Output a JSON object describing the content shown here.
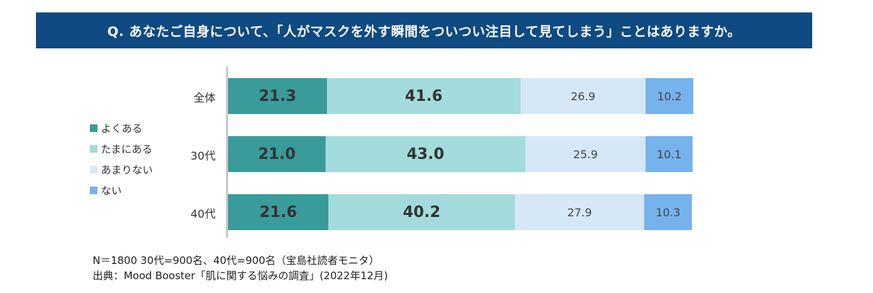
{
  "title": "Q.  あなたご自身について、「人がマスクを外す瞬間をついつい注目して見てしまう」ことはありますか。",
  "chart_data": {
    "type": "bar",
    "orientation": "horizontal",
    "stacked": true,
    "unit": "%",
    "categories": [
      "全体",
      "30代",
      "40代"
    ],
    "series": [
      {
        "name": "よくある",
        "color": "#3a9b9b",
        "values": [
          21.3,
          21.0,
          21.6
        ]
      },
      {
        "name": "たまにある",
        "color": "#a3dbdc",
        "values": [
          41.6,
          43.0,
          40.2
        ]
      },
      {
        "name": "あまりない",
        "color": "#d6e7f7",
        "values": [
          26.9,
          25.9,
          27.9
        ]
      },
      {
        "name": "ない",
        "color": "#76b2ec",
        "values": [
          10.2,
          10.1,
          10.3
        ]
      }
    ],
    "xlim": [
      0,
      100
    ],
    "legend_position": "left"
  },
  "footnotes": [
    "N＝1800 30代=900名、40代=900名（宝島社読者モニタ）",
    "出典：Mood Booster「肌に関する悩みの調査」(2022年12月)"
  ]
}
